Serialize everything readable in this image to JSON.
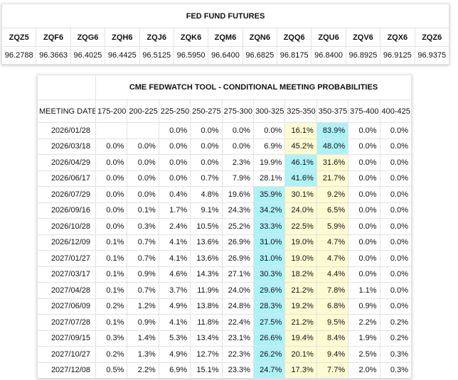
{
  "futures": {
    "title": "FED FUND FUTURES",
    "headers": [
      "ZQZ5",
      "ZQF6",
      "ZQG6",
      "ZQH6",
      "ZQJ6",
      "ZQK6",
      "ZQM6",
      "ZQN6",
      "ZQQ6",
      "ZQU6",
      "ZQV6",
      "ZQX6",
      "ZQZ6"
    ],
    "values": [
      "96.2788",
      "96.3663",
      "96.4025",
      "96.4425",
      "96.5125",
      "96.5950",
      "96.6400",
      "96.6825",
      "96.8175",
      "96.8400",
      "96.8925",
      "96.9125",
      "96.9375"
    ]
  },
  "fedwatch": {
    "title": "CME FEDWATCH TOOL - CONDITIONAL MEETING PROBABILITIES",
    "date_header": "MEETING DATE",
    "ranges": [
      "175-200",
      "200-225",
      "225-250",
      "250-275",
      "275-300",
      "300-325",
      "325-350",
      "350-375",
      "375-400",
      "400-425"
    ],
    "rows": [
      {
        "date": "2026/01/28",
        "values": [
          null,
          null,
          "0.0%",
          "0.0%",
          "0.0%",
          "0.0%",
          "16.1%",
          "83.9%",
          "0.0%",
          "0.0%"
        ]
      },
      {
        "date": "2026/03/18",
        "values": [
          "0.0%",
          "0.0%",
          "0.0%",
          "0.0%",
          "0.0%",
          "6.9%",
          "45.2%",
          "48.0%",
          "0.0%",
          "0.0%"
        ]
      },
      {
        "date": "2026/04/29",
        "values": [
          "0.0%",
          "0.0%",
          "0.0%",
          "0.0%",
          "2.3%",
          "19.9%",
          "46.1%",
          "31.6%",
          "0.0%",
          "0.0%"
        ]
      },
      {
        "date": "2026/06/17",
        "values": [
          "0.0%",
          "0.0%",
          "0.0%",
          "0.7%",
          "7.9%",
          "28.1%",
          "41.6%",
          "21.7%",
          "0.0%",
          "0.0%"
        ]
      },
      {
        "date": "2026/07/29",
        "values": [
          "0.0%",
          "0.0%",
          "0.4%",
          "4.8%",
          "19.6%",
          "35.9%",
          "30.1%",
          "9.2%",
          "0.0%",
          "0.0%"
        ]
      },
      {
        "date": "2026/09/16",
        "values": [
          "0.0%",
          "0.1%",
          "1.7%",
          "9.1%",
          "24.3%",
          "34.2%",
          "24.0%",
          "6.5%",
          "0.0%",
          "0.0%"
        ]
      },
      {
        "date": "2026/10/28",
        "values": [
          "0.0%",
          "0.3%",
          "2.4%",
          "10.5%",
          "25.2%",
          "33.3%",
          "22.5%",
          "5.9%",
          "0.0%",
          "0.0%"
        ]
      },
      {
        "date": "2026/12/09",
        "values": [
          "0.1%",
          "0.7%",
          "4.1%",
          "13.6%",
          "26.9%",
          "31.0%",
          "19.0%",
          "4.7%",
          "0.0%",
          "0.0%"
        ]
      },
      {
        "date": "2027/01/27",
        "values": [
          "0.1%",
          "0.7%",
          "4.1%",
          "13.6%",
          "26.9%",
          "31.0%",
          "19.0%",
          "4.7%",
          "0.0%",
          "0.0%"
        ]
      },
      {
        "date": "2027/03/17",
        "values": [
          "0.1%",
          "0.9%",
          "4.6%",
          "14.3%",
          "27.1%",
          "30.3%",
          "18.2%",
          "4.4%",
          "0.0%",
          "0.0%"
        ]
      },
      {
        "date": "2027/04/28",
        "values": [
          "0.1%",
          "0.7%",
          "3.7%",
          "11.9%",
          "24.0%",
          "29.6%",
          "21.2%",
          "7.8%",
          "1.1%",
          "0.0%"
        ]
      },
      {
        "date": "2027/06/09",
        "values": [
          "0.2%",
          "1.2%",
          "4.9%",
          "13.8%",
          "24.8%",
          "28.3%",
          "19.2%",
          "6.8%",
          "0.9%",
          "0.0%"
        ]
      },
      {
        "date": "2027/07/28",
        "values": [
          "0.1%",
          "0.9%",
          "4.1%",
          "11.8%",
          "22.4%",
          "27.5%",
          "21.2%",
          "9.5%",
          "2.2%",
          "0.2%"
        ]
      },
      {
        "date": "2027/09/15",
        "values": [
          "0.3%",
          "1.4%",
          "5.3%",
          "13.4%",
          "23.1%",
          "26.6%",
          "19.4%",
          "8.4%",
          "1.9%",
          "0.2%"
        ]
      },
      {
        "date": "2027/10/27",
        "values": [
          "0.2%",
          "1.3%",
          "4.9%",
          "12.7%",
          "22.3%",
          "26.2%",
          "20.1%",
          "9.4%",
          "2.5%",
          "0.3%"
        ]
      },
      {
        "date": "2027/12/08",
        "values": [
          "0.5%",
          "2.2%",
          "6.9%",
          "15.1%",
          "23.3%",
          "24.7%",
          "17.3%",
          "7.7%",
          "2.0%",
          "0.3%"
        ]
      }
    ]
  }
}
